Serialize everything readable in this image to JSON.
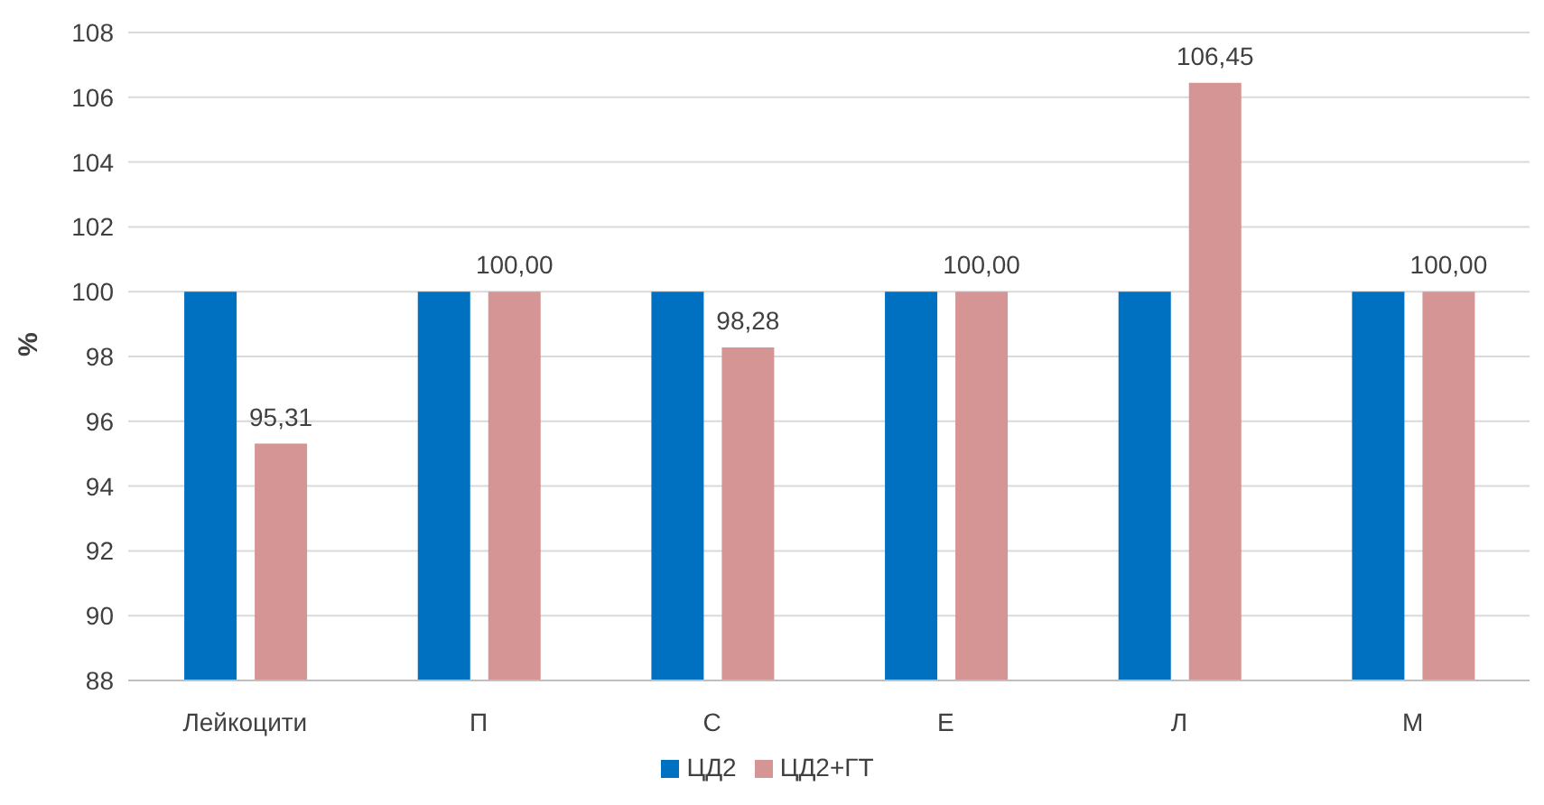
{
  "chart_data": {
    "type": "bar",
    "ylabel": "%",
    "categories": [
      "Лейкоцити",
      "П",
      "С",
      "Е",
      "Л",
      "М"
    ],
    "series": [
      {
        "name": "ЦД2",
        "color": "#0070c0",
        "values": [
          100,
          100,
          100,
          100,
          100,
          100
        ]
      },
      {
        "name": "ЦД2+ГТ",
        "color": "#d69595",
        "values": [
          95.31,
          100,
          98.28,
          100,
          106.45,
          100
        ],
        "value_labels": [
          "95,31",
          "100,00",
          "98,28",
          "100,00",
          "106,45",
          "100,00"
        ]
      }
    ],
    "ylim": [
      88,
      108
    ],
    "yticks": [
      88,
      90,
      92,
      94,
      96,
      98,
      100,
      102,
      104,
      106,
      108
    ],
    "grid": "y",
    "legend": "bottom"
  }
}
